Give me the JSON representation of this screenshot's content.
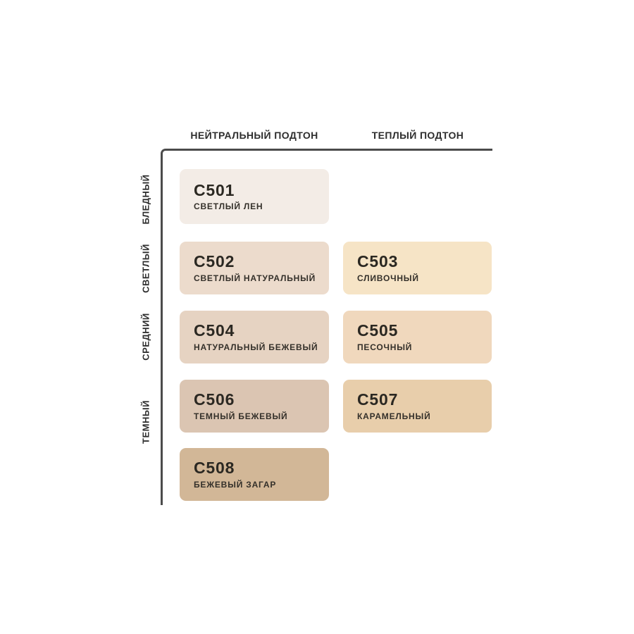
{
  "axis_color": "#4B4B4B",
  "columns": [
    {
      "label": "НЕЙТРАЛЬНЫЙ ПОДТОН"
    },
    {
      "label": "ТЕПЛЫЙ ПОДТОН"
    }
  ],
  "rows": [
    {
      "label": "БЛЕДНЫЙ"
    },
    {
      "label": "СВЕТЛЫЙ"
    },
    {
      "label": "СРЕДНИЙ"
    },
    {
      "label": "ТЕМНЫЙ"
    }
  ],
  "swatches": [
    {
      "code": "C501",
      "name": "СВЕТЛЫЙ ЛЕН",
      "color": "#F3ECE6",
      "row": "БЛЕДНЫЙ",
      "column": "НЕЙТРАЛЬНЫЙ ПОДТОН"
    },
    {
      "code": "C502",
      "name": "СВЕТЛЫЙ НАТУРАЛЬНЫЙ",
      "color": "#ECDBCC",
      "row": "СВЕТЛЫЙ",
      "column": "НЕЙТРАЛЬНЫЙ ПОДТОН"
    },
    {
      "code": "C503",
      "name": "СЛИВОЧНЫЙ",
      "color": "#F6E4C6",
      "row": "СВЕТЛЫЙ",
      "column": "ТЕПЛЫЙ ПОДТОН"
    },
    {
      "code": "C504",
      "name": "НАТУРАЛЬНЫЙ БЕЖЕВЫЙ",
      "color": "#E6D3C2",
      "row": "СРЕДНИЙ",
      "column": "НЕЙТРАЛЬНЫЙ ПОДТОН"
    },
    {
      "code": "C505",
      "name": "ПЕСОЧНЫЙ",
      "color": "#F0D8BD",
      "row": "СРЕДНИЙ",
      "column": "ТЕПЛЫЙ ПОДТОН"
    },
    {
      "code": "C506",
      "name": "ТЕМНЫЙ БЕЖЕВЫЙ",
      "color": "#DBC5B2",
      "row": "ТЕМНЫЙ",
      "column": "НЕЙТРАЛЬНЫЙ ПОДТОН"
    },
    {
      "code": "C507",
      "name": "КАРАМЕЛЬНЫЙ",
      "color": "#E8CEAB",
      "row": "ТЕМНЫЙ",
      "column": "ТЕПЛЫЙ ПОДТОН"
    },
    {
      "code": "C508",
      "name": "БЕЖЕВЫЙ ЗАГАР",
      "color": "#D2B797",
      "row": "ТЕМНЫЙ",
      "column": "НЕЙТРАЛЬНЫЙ ПОДТОН"
    }
  ]
}
